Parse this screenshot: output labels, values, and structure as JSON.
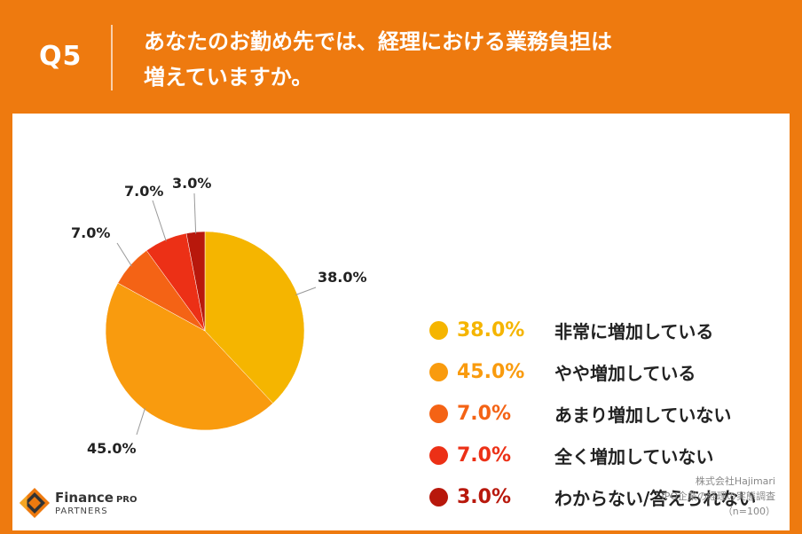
{
  "header": {
    "question_number": "Q5",
    "question_line1": "あなたのお勤め先では、経理における業務負担は",
    "question_line2": "増えていますか。"
  },
  "chart_data": {
    "type": "pie",
    "categories": [
      "非常に増加している",
      "やや増加している",
      "あまり増加していない",
      "全く増加していない",
      "わからない/答えられない"
    ],
    "values": [
      38.0,
      45.0,
      7.0,
      7.0,
      3.0
    ],
    "labels": [
      "38.0%",
      "45.0%",
      "7.0%",
      "7.0%",
      "3.0%"
    ],
    "colors": [
      "#f5b500",
      "#f99b0e",
      "#f46315",
      "#ec3016",
      "#b8180c"
    ],
    "legend_position": "right"
  },
  "footer": {
    "logo_name": "Finance",
    "logo_pro": "PRO",
    "logo_sub": "PARTNERS",
    "source_line1": "株式会社Hajimari",
    "source_line2": "IPO企業の経理の実態調査",
    "source_line3": "（n=100）"
  }
}
